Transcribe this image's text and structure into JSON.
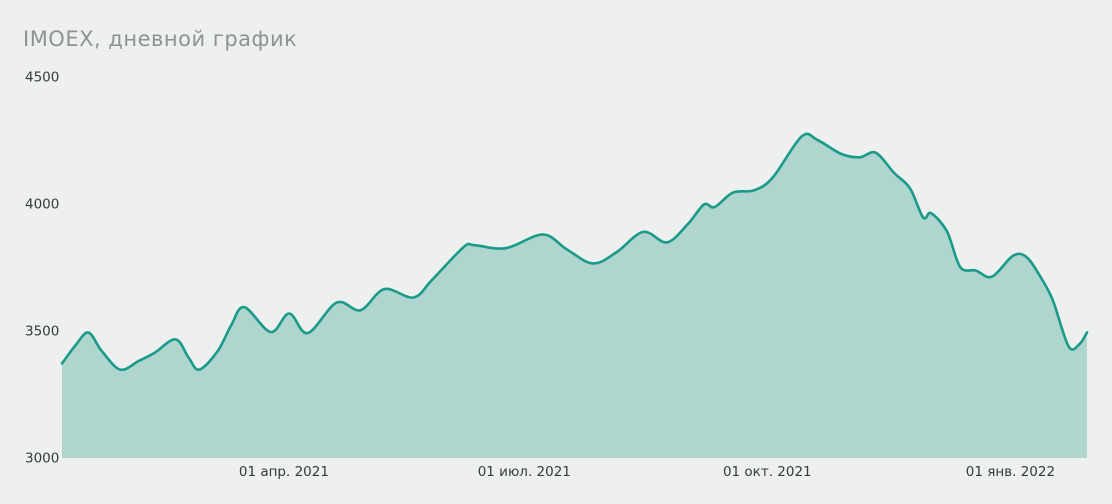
{
  "chart": {
    "title": "IMOEX, дневной график"
  },
  "chart_data": {
    "type": "area",
    "series_name": "IMOEX",
    "title": "IMOEX, дневной график",
    "xlabel": "",
    "ylabel": "",
    "ylim": [
      3000,
      4500
    ],
    "grid": false,
    "legend": false,
    "y_ticks": [
      3000,
      3500,
      4000,
      4500
    ],
    "x_ticks": [
      {
        "date": "2021-04-01",
        "label": "01 апр. 2021"
      },
      {
        "date": "2021-07-01",
        "label": "01 июл. 2021"
      },
      {
        "date": "2021-10-01",
        "label": "01 окт. 2021"
      },
      {
        "date": "2022-01-01",
        "label": "01 янв. 2022"
      }
    ],
    "points": [
      {
        "date": "2021-01-07",
        "value": 3370
      },
      {
        "date": "2021-01-12",
        "value": 3440
      },
      {
        "date": "2021-01-17",
        "value": 3492
      },
      {
        "date": "2021-01-22",
        "value": 3420
      },
      {
        "date": "2021-01-29",
        "value": 3346
      },
      {
        "date": "2021-02-05",
        "value": 3380
      },
      {
        "date": "2021-02-11",
        "value": 3412
      },
      {
        "date": "2021-02-19",
        "value": 3465
      },
      {
        "date": "2021-02-24",
        "value": 3392
      },
      {
        "date": "2021-02-28",
        "value": 3346
      },
      {
        "date": "2021-03-07",
        "value": 3420
      },
      {
        "date": "2021-03-12",
        "value": 3520
      },
      {
        "date": "2021-03-17",
        "value": 3592
      },
      {
        "date": "2021-03-27",
        "value": 3494
      },
      {
        "date": "2021-04-03",
        "value": 3567
      },
      {
        "date": "2021-04-10",
        "value": 3490
      },
      {
        "date": "2021-04-21",
        "value": 3610
      },
      {
        "date": "2021-04-30",
        "value": 3580
      },
      {
        "date": "2021-05-09",
        "value": 3663
      },
      {
        "date": "2021-05-20",
        "value": 3630
      },
      {
        "date": "2021-05-27",
        "value": 3698
      },
      {
        "date": "2021-06-08",
        "value": 3828
      },
      {
        "date": "2021-06-12",
        "value": 3836
      },
      {
        "date": "2021-06-24",
        "value": 3824
      },
      {
        "date": "2021-07-08",
        "value": 3878
      },
      {
        "date": "2021-07-17",
        "value": 3820
      },
      {
        "date": "2021-07-27",
        "value": 3764
      },
      {
        "date": "2021-08-05",
        "value": 3809
      },
      {
        "date": "2021-08-15",
        "value": 3888
      },
      {
        "date": "2021-08-24",
        "value": 3847
      },
      {
        "date": "2021-09-01",
        "value": 3920
      },
      {
        "date": "2021-09-07",
        "value": 3996
      },
      {
        "date": "2021-09-11",
        "value": 3986
      },
      {
        "date": "2021-09-18",
        "value": 4043
      },
      {
        "date": "2021-09-26",
        "value": 4052
      },
      {
        "date": "2021-10-03",
        "value": 4102
      },
      {
        "date": "2021-10-14",
        "value": 4264
      },
      {
        "date": "2021-10-20",
        "value": 4250
      },
      {
        "date": "2021-10-29",
        "value": 4195
      },
      {
        "date": "2021-11-05",
        "value": 4182
      },
      {
        "date": "2021-11-11",
        "value": 4200
      },
      {
        "date": "2021-11-18",
        "value": 4120
      },
      {
        "date": "2021-11-24",
        "value": 4060
      },
      {
        "date": "2021-11-29",
        "value": 3945
      },
      {
        "date": "2021-12-02",
        "value": 3962
      },
      {
        "date": "2021-12-08",
        "value": 3890
      },
      {
        "date": "2021-12-13",
        "value": 3750
      },
      {
        "date": "2021-12-19",
        "value": 3736
      },
      {
        "date": "2021-12-25",
        "value": 3712
      },
      {
        "date": "2022-01-02",
        "value": 3794
      },
      {
        "date": "2022-01-07",
        "value": 3790
      },
      {
        "date": "2022-01-12",
        "value": 3718
      },
      {
        "date": "2022-01-17",
        "value": 3620
      },
      {
        "date": "2022-01-23",
        "value": 3438
      },
      {
        "date": "2022-01-27",
        "value": 3445
      },
      {
        "date": "2022-01-30",
        "value": 3492
      }
    ],
    "colors": {
      "line": "#1a9a89",
      "fill": "#aed5ce",
      "background": "#edf0ef",
      "title_text": "#8e9293",
      "tick_text": "#353a3a"
    }
  }
}
